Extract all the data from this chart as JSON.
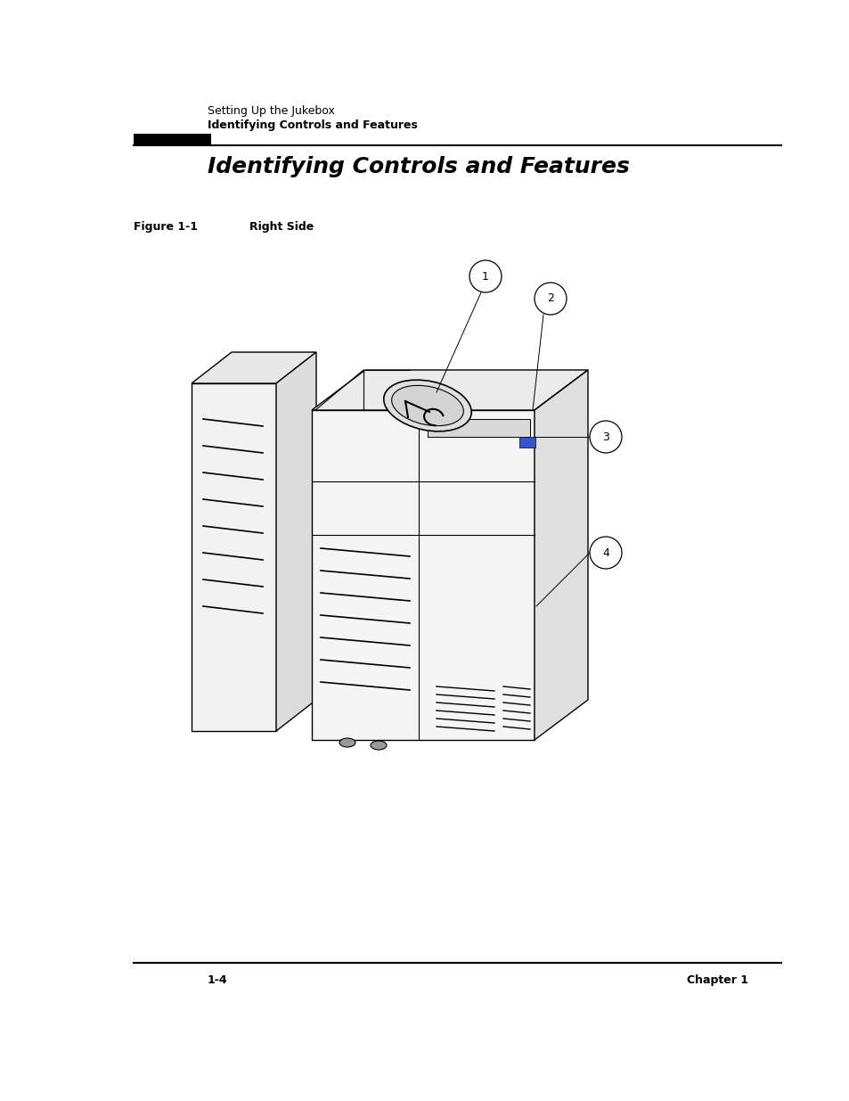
{
  "bg_color": "#ffffff",
  "header_text1": "Setting Up the Jukebox",
  "header_text2": "Identifying Controls and Features",
  "title": "Identifying Controls and Features",
  "figure_label": "Figure 1-1",
  "figure_caption": "Right Side",
  "footer_left": "1-4",
  "footer_right": "Chapter 1"
}
